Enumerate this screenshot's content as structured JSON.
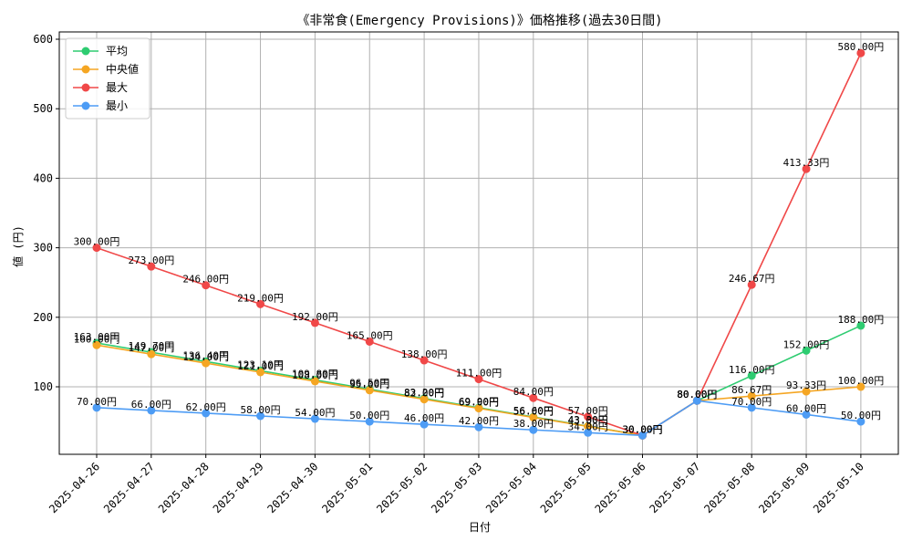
{
  "chart_data": {
    "type": "line",
    "title": "《非常食(Emergency Provisions)》価格推移(過去30日間)",
    "xlabel": "日付",
    "ylabel": "値 (円)",
    "ylim": [
      0,
      600
    ],
    "yticks": [
      100,
      200,
      300,
      400,
      500,
      600
    ],
    "grid": true,
    "legend_position": "top-left",
    "categories": [
      "2025-04-26",
      "2025-04-27",
      "2025-04-28",
      "2025-04-29",
      "2025-04-30",
      "2025-05-01",
      "2025-05-02",
      "2025-05-03",
      "2025-05-04",
      "2025-05-05",
      "2025-05-06",
      "2025-05-07",
      "2025-05-08",
      "2025-05-09",
      "2025-05-10"
    ],
    "series": [
      {
        "name": "平均",
        "color": "#2ecc71",
        "values": [
          163.0,
          149.7,
          136.4,
          123.1,
          109.8,
          96.5,
          83.2,
          69.9,
          56.6,
          43.3,
          30.0,
          80.0,
          116.0,
          152.0,
          188.0
        ],
        "labels": [
          "163.00円",
          "149.70円",
          "136.40円",
          "123.10円",
          "109.80円",
          "96.50円",
          "83.20円",
          "69.90円",
          "56.60円",
          "43.30円",
          "30.00円",
          "80.00円",
          "116.00円",
          "152.00円",
          "188.00円"
        ]
      },
      {
        "name": "中央値",
        "color": "#f5a623",
        "values": [
          160.0,
          147.0,
          134.0,
          121.0,
          108.0,
          95.0,
          82.0,
          69.0,
          56.0,
          43.0,
          30.0,
          80.0,
          86.67,
          93.33,
          100.0
        ],
        "labels": [
          "160.00円",
          "147.00円",
          "134.00円",
          "121.00円",
          "108.00円",
          "95.00円",
          "82.00円",
          "69.00円",
          "56.00円",
          "43.00円",
          "30.00円",
          "80.00円",
          "86.67円",
          "93.33円",
          "100.00円"
        ]
      },
      {
        "name": "最大",
        "color": "#f04848",
        "values": [
          300.0,
          273.0,
          246.0,
          219.0,
          192.0,
          165.0,
          138.0,
          111.0,
          84.0,
          57.0,
          30.0,
          80.0,
          246.67,
          413.33,
          580.0
        ],
        "labels": [
          "300.00円",
          "273.00円",
          "246.00円",
          "219.00円",
          "192.00円",
          "165.00円",
          "138.00円",
          "111.00円",
          "84.00円",
          "57.00円",
          "30.00円",
          "80.00円",
          "246.67円",
          "413.33円",
          "580.00円"
        ]
      },
      {
        "name": "最小",
        "color": "#4d9cf5",
        "values": [
          70.0,
          66.0,
          62.0,
          58.0,
          54.0,
          50.0,
          46.0,
          42.0,
          38.0,
          34.0,
          30.0,
          80.0,
          70.0,
          60.0,
          50.0
        ],
        "labels": [
          "70.00円",
          "66.00円",
          "62.00円",
          "58.00円",
          "54.00円",
          "50.00円",
          "46.00円",
          "42.00円",
          "38.00円",
          "34.00円",
          "30.00円",
          "80.00円",
          "70.00円",
          "60.00円",
          "50.00円"
        ]
      }
    ]
  }
}
